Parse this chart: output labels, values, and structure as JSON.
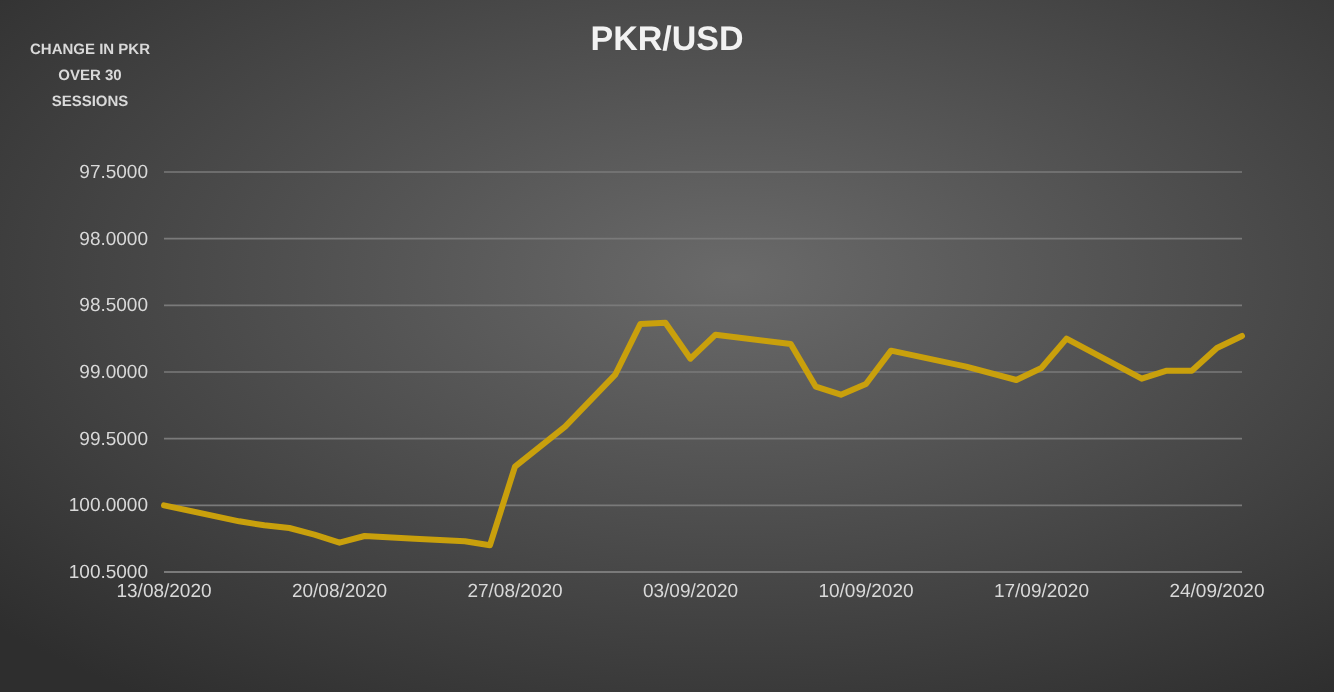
{
  "chart_data": {
    "type": "line",
    "title": "PKR/USD",
    "ylabel": "CHANGE IN PKR OVER 30 SESSIONS",
    "x": [
      "2020-08-13",
      "2020-08-16",
      "2020-08-17",
      "2020-08-18",
      "2020-08-19",
      "2020-08-20",
      "2020-08-21",
      "2020-08-23",
      "2020-08-25",
      "2020-08-26",
      "2020-08-27",
      "2020-08-29",
      "2020-08-31",
      "2020-09-01",
      "2020-09-02",
      "2020-09-03",
      "2020-09-04",
      "2020-09-07",
      "2020-09-08",
      "2020-09-09",
      "2020-09-10",
      "2020-09-11",
      "2020-09-14",
      "2020-09-16",
      "2020-09-17",
      "2020-09-18",
      "2020-09-21",
      "2020-09-22",
      "2020-09-23",
      "2020-09-24",
      "2020-09-25"
    ],
    "series": [
      {
        "color": "#c9a00c",
        "values": [
          100.0,
          100.12,
          100.15,
          100.17,
          100.22,
          100.28,
          100.23,
          100.25,
          100.27,
          100.3,
          99.71,
          99.41,
          99.02,
          98.64,
          98.63,
          98.9,
          98.72,
          98.79,
          99.11,
          99.17,
          99.09,
          98.84,
          98.96,
          99.06,
          98.97,
          98.75,
          99.05,
          98.99,
          98.99,
          98.82,
          98.73
        ]
      }
    ],
    "xlim": [
      "2020-08-13",
      "2020-09-25"
    ],
    "xticks": [
      {
        "value": "2020-08-13",
        "label": "13/08/2020"
      },
      {
        "value": "2020-08-20",
        "label": "20/08/2020"
      },
      {
        "value": "2020-08-27",
        "label": "27/08/2020"
      },
      {
        "value": "2020-09-03",
        "label": "03/09/2020"
      },
      {
        "value": "2020-09-10",
        "label": "10/09/2020"
      },
      {
        "value": "2020-09-17",
        "label": "17/09/2020"
      },
      {
        "value": "2020-09-24",
        "label": "24/09/2020"
      }
    ],
    "ylim": [
      100.5,
      97.5
    ],
    "yticks": [
      {
        "value": 97.5,
        "label": "97.5000"
      },
      {
        "value": 98,
        "label": "98.0000"
      },
      {
        "value": 98.5,
        "label": "98.5000"
      },
      {
        "value": 99,
        "label": "99.0000"
      },
      {
        "value": 99.5,
        "label": "99.5000"
      },
      {
        "value": 100,
        "label": "100.0000"
      },
      {
        "value": 100.5,
        "label": "100.5000"
      }
    ],
    "grid": "y",
    "marker": "none",
    "line_style": "solid"
  }
}
